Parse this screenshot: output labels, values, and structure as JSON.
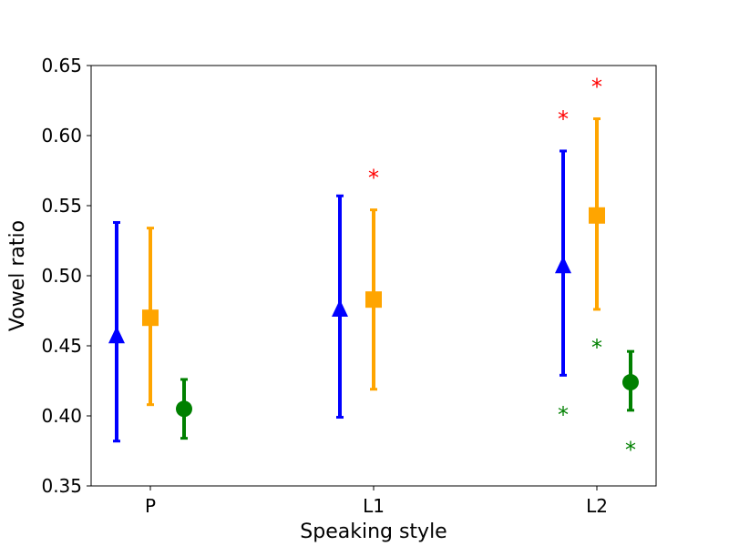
{
  "chart_data": {
    "type": "errorbar",
    "xlabel": "Speaking style",
    "ylabel": "Vowel ratio",
    "categories": [
      "P",
      "L1",
      "L2"
    ],
    "ylim": [
      0.35,
      0.65
    ],
    "yticks": [
      "0.35",
      "0.40",
      "0.45",
      "0.50",
      "0.55",
      "0.60",
      "0.65"
    ],
    "grid": false,
    "series": [
      {
        "marker": "triangle",
        "color": "#0000ff",
        "points": [
          {
            "category": "P",
            "mean": 0.457,
            "low": 0.382,
            "high": 0.538
          },
          {
            "category": "L1",
            "mean": 0.476,
            "low": 0.399,
            "high": 0.557
          },
          {
            "category": "L2",
            "mean": 0.507,
            "low": 0.429,
            "high": 0.589
          }
        ]
      },
      {
        "marker": "square",
        "color": "#ffa500",
        "points": [
          {
            "category": "P",
            "mean": 0.47,
            "low": 0.408,
            "high": 0.534
          },
          {
            "category": "L1",
            "mean": 0.483,
            "low": 0.419,
            "high": 0.547
          },
          {
            "category": "L2",
            "mean": 0.543,
            "low": 0.476,
            "high": 0.612
          }
        ]
      },
      {
        "marker": "circle",
        "color": "#008000",
        "points": [
          {
            "category": "P",
            "mean": 0.405,
            "low": 0.384,
            "high": 0.426
          },
          {
            "category": "L2",
            "mean": 0.424,
            "low": 0.404,
            "high": 0.446
          }
        ]
      }
    ],
    "annotations": [
      {
        "text": "*",
        "category": "L1",
        "series": 1,
        "y": 0.573,
        "color": "#ff0000"
      },
      {
        "text": "*",
        "category": "L2",
        "series": 0,
        "y": 0.615,
        "color": "#ff0000"
      },
      {
        "text": "*",
        "category": "L2",
        "series": 1,
        "y": 0.638,
        "color": "#ff0000"
      },
      {
        "text": "*",
        "category": "L2",
        "series": 0,
        "y": 0.404,
        "color": "#008000"
      },
      {
        "text": "*",
        "category": "L2",
        "series": 1,
        "y": 0.452,
        "color": "#008000"
      },
      {
        "text": "*",
        "category": "L2",
        "series": 2,
        "y": 0.379,
        "color": "#008000"
      }
    ]
  }
}
